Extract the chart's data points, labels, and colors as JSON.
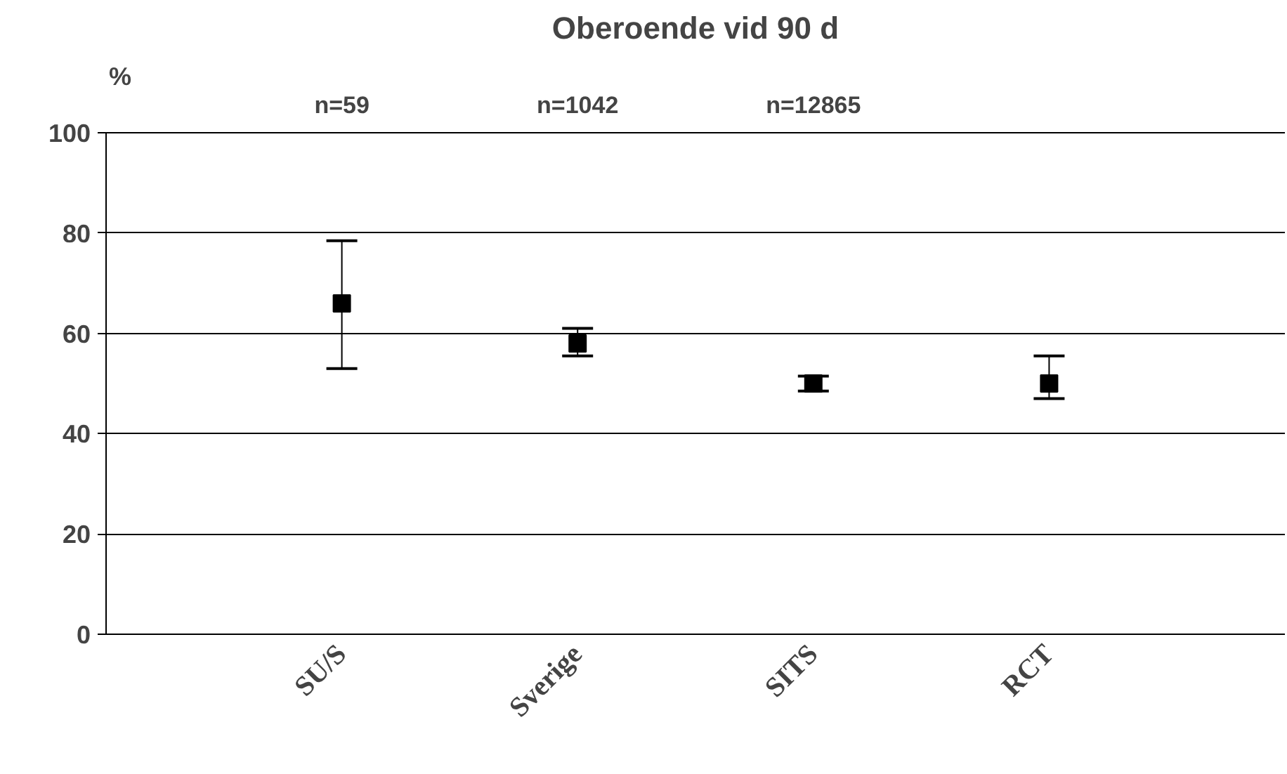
{
  "chart_data": {
    "type": "scatter",
    "title": "Oberoende vid 90 d",
    "ylabel": "%",
    "categories": [
      "SU/S",
      "Sverige",
      "SITS",
      "RCT"
    ],
    "values": [
      66,
      58,
      50,
      50
    ],
    "errors": [
      [
        53,
        78.5
      ],
      [
        55.5,
        61
      ],
      [
        48.5,
        51.5
      ],
      [
        47,
        55.5
      ]
    ],
    "color": "#000000",
    "marker": "square",
    "ylim": [
      0,
      100
    ],
    "yticks": [
      0,
      20,
      40,
      60,
      80,
      100
    ],
    "grid": "y",
    "legend": false,
    "annotations": [
      "n=59",
      "n=1042",
      "n=12865"
    ]
  }
}
